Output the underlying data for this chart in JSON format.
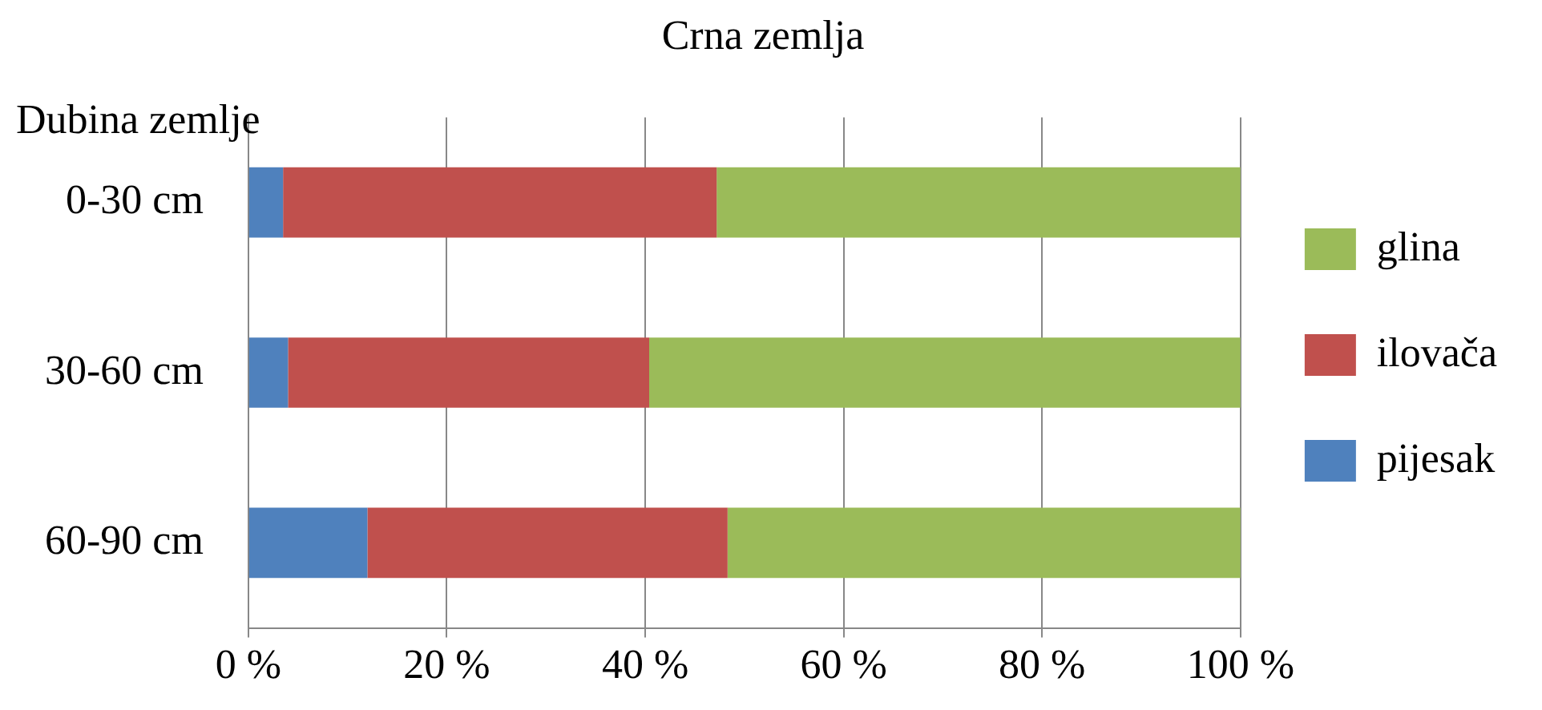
{
  "chart_data": {
    "type": "bar",
    "title": "Crna zemlja",
    "ylabel": "Dubina zemlje",
    "orientation": "horizontal",
    "stacked": true,
    "categories": [
      "0-30 cm",
      "30-60 cm",
      "60-90 cm"
    ],
    "series": [
      {
        "name": "pijesak",
        "color": "#4f81bd",
        "values": [
          3.5,
          4,
          12
        ]
      },
      {
        "name": "ilovača",
        "color": "#c0504d",
        "values": [
          43.7,
          36.4,
          36.3
        ]
      },
      {
        "name": "glina",
        "color": "#9bbb59",
        "values": [
          52.8,
          59.6,
          51.7
        ]
      }
    ],
    "xlim": [
      0,
      100
    ],
    "xticks": [
      {
        "value": 0,
        "label": "0 %"
      },
      {
        "value": 20,
        "label": "20 %"
      },
      {
        "value": 40,
        "label": "40 %"
      },
      {
        "value": 60,
        "label": "60 %"
      },
      {
        "value": 80,
        "label": "80 %"
      },
      {
        "value": 100,
        "label": "100 %"
      }
    ],
    "grid": "x",
    "legend": "right"
  }
}
